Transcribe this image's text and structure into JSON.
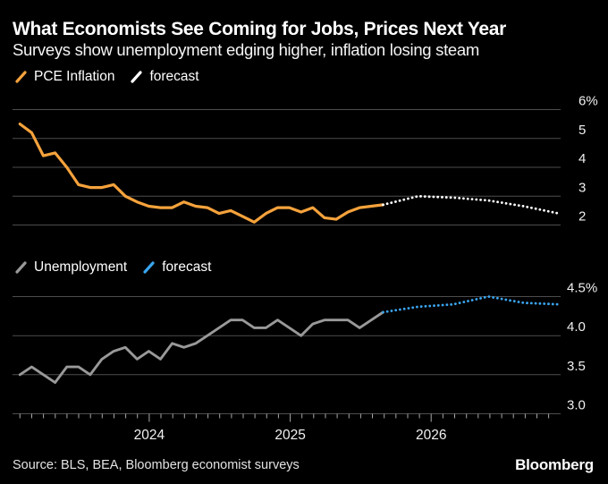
{
  "header": {
    "title": "What Economists See Coming for Jobs, Prices Next Year",
    "subtitle": "Surveys show unemployment edging higher, inflation losing steam"
  },
  "colors": {
    "background": "#000000",
    "orange": "#F5A23C",
    "white": "#FFFFFF",
    "gray_line": "#999999",
    "blue": "#3AA5F0",
    "gridline": "#4D4D4D",
    "axis": "#4D4D4D",
    "tick": "#A8A8A8",
    "label": "#F0F0F0"
  },
  "x_axis": {
    "year_ticks": [
      {
        "label": "2024",
        "month_index": 12
      },
      {
        "label": "2025",
        "month_index": 24
      },
      {
        "label": "2026",
        "month_index": 36
      }
    ],
    "minor_tick_months": "monthly from Feb 2023 to Nov 2026"
  },
  "chart_data": [
    {
      "id": "inflation",
      "type": "line",
      "title": "PCE Inflation with forecast",
      "x_start": "2023-01",
      "x_unit": "month",
      "ylim": [
        2,
        6
      ],
      "grid": "horizontal",
      "legend_position": "top-left",
      "yticks": [
        {
          "value": 6,
          "label": "6%"
        },
        {
          "value": 5,
          "label": "5"
        },
        {
          "value": 4,
          "label": "4"
        },
        {
          "value": 3,
          "label": "3"
        },
        {
          "value": 2,
          "label": "2"
        }
      ],
      "legend_items": [
        {
          "label": "PCE Inflation",
          "color_key": "orange",
          "style": "solid"
        },
        {
          "label": "forecast",
          "color_key": "white",
          "style": "dotted"
        }
      ],
      "series": [
        {
          "name": "PCE Inflation",
          "style": "solid",
          "color_key": "orange",
          "start_month_index": 0,
          "values": [
            5.5,
            5.2,
            4.4,
            4.5,
            4.0,
            3.4,
            3.3,
            3.3,
            3.4,
            3.0,
            2.8,
            2.65,
            2.6,
            2.6,
            2.8,
            2.65,
            2.6,
            2.4,
            2.5,
            2.3,
            2.1,
            2.4,
            2.6,
            2.6,
            2.45,
            2.6,
            2.25,
            2.2,
            2.45,
            2.6,
            2.65,
            2.7
          ]
        },
        {
          "name": "forecast",
          "style": "dotted",
          "color_key": "white",
          "month_indices": [
            31,
            34,
            37,
            40,
            43,
            46
          ],
          "values": [
            2.7,
            3.0,
            2.95,
            2.85,
            2.65,
            2.4
          ]
        }
      ]
    },
    {
      "id": "unemployment",
      "type": "line",
      "title": "Unemployment with forecast",
      "x_start": "2023-01",
      "x_unit": "month",
      "ylim": [
        3.0,
        4.5
      ],
      "grid": "horizontal",
      "legend_position": "top-left",
      "yticks": [
        {
          "value": 4.5,
          "label": "4.5%"
        },
        {
          "value": 4.0,
          "label": "4.0"
        },
        {
          "value": 3.5,
          "label": "3.5"
        },
        {
          "value": 3.0,
          "label": "3.0"
        }
      ],
      "legend_items": [
        {
          "label": "Unemployment",
          "color_key": "gray_line",
          "style": "solid"
        },
        {
          "label": "forecast",
          "color_key": "blue",
          "style": "dotted"
        }
      ],
      "series": [
        {
          "name": "Unemployment",
          "style": "solid",
          "color_key": "gray_line",
          "start_month_index": 0,
          "values": [
            3.5,
            3.6,
            3.5,
            3.4,
            3.6,
            3.6,
            3.5,
            3.7,
            3.8,
            3.85,
            3.7,
            3.8,
            3.7,
            3.9,
            3.85,
            3.9,
            4.0,
            4.1,
            4.2,
            4.2,
            4.1,
            4.1,
            4.2,
            4.1,
            4.0,
            4.15,
            4.2,
            4.2,
            4.2,
            4.1,
            4.2,
            4.3
          ]
        },
        {
          "name": "forecast",
          "style": "dotted",
          "color_key": "blue",
          "month_indices": [
            31,
            34,
            37,
            40,
            43,
            46
          ],
          "values": [
            4.3,
            4.37,
            4.4,
            4.5,
            4.42,
            4.4
          ]
        }
      ]
    }
  ],
  "footer": {
    "source": "Source: BLS, BEA, Bloomberg economist surveys",
    "logo": "Bloomberg"
  }
}
